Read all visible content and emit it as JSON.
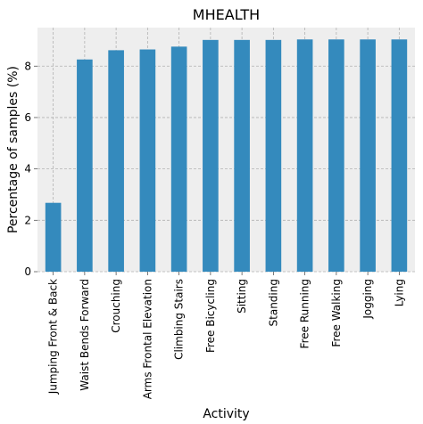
{
  "chart_data": {
    "type": "bar",
    "title": "MHEALTH",
    "xlabel": "Activity",
    "ylabel": "Percentage of samples (%)",
    "categories": [
      "Jumping Front & Back",
      "Waist Bends Forward",
      "Crouching",
      "Arms Frontal Elevation",
      "Climbing Stairs",
      "Free Bicycling",
      "Sitting",
      "Standing",
      "Free Running",
      "Free Walking",
      "Jogging",
      "Lying"
    ],
    "values": [
      2.68,
      8.26,
      8.62,
      8.65,
      8.76,
      9.02,
      9.02,
      9.02,
      9.04,
      9.04,
      9.04,
      9.04
    ],
    "ylim": [
      0,
      9.5
    ],
    "yticks": [
      0,
      2,
      4,
      6,
      8
    ],
    "grid": true,
    "bar_color": "#348abd",
    "background_color": "#eeeeee",
    "grid_color": "#b2b2b2"
  }
}
